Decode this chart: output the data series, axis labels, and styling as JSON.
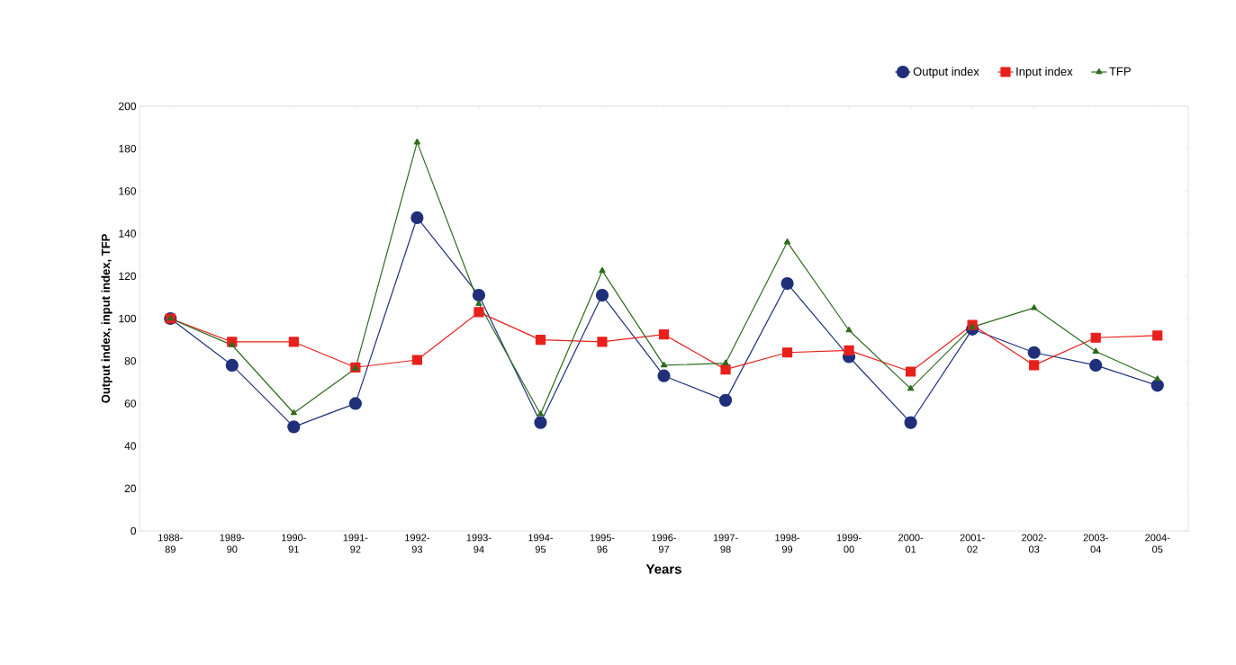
{
  "chart_data": {
    "type": "line",
    "xlabel": "Years",
    "ylabel": "Output index, input index, TFP",
    "categories": [
      "1988-\n89",
      "1989-\n90",
      "1990-\n91",
      "1991-\n92",
      "1992-\n93",
      "1993-\n94",
      "1994-\n95",
      "1995-\n96",
      "1996-\n97",
      "1997-\n98",
      "1998-\n99",
      "1999-\n00",
      "2000-\n01",
      "2001-\n02",
      "2002-\n03",
      "2003-\n04",
      "2004-\n05"
    ],
    "series": [
      {
        "name": "Output index",
        "color": "#1f2f7a",
        "marker": "circle",
        "values": [
          100,
          78,
          49,
          60,
          147.5,
          111,
          51,
          111,
          73,
          61.5,
          116.5,
          82,
          51,
          95,
          84,
          78,
          68.5
        ]
      },
      {
        "name": "Input index",
        "color": "#e8201c",
        "marker": "square",
        "values": [
          100,
          89,
          89,
          77,
          80.5,
          103,
          90,
          89,
          92.5,
          76,
          84,
          85,
          75,
          97,
          78,
          91,
          92
        ]
      },
      {
        "name": "TFP",
        "color": "#2e6b1e",
        "marker": "triangle",
        "values": [
          100,
          87.5,
          55.5,
          76.5,
          183,
          107,
          55,
          122.5,
          78,
          79,
          136,
          94.5,
          67,
          96,
          105,
          84.5,
          71.5
        ]
      }
    ],
    "ylim": [
      0,
      200
    ],
    "yticks": [
      0,
      20,
      40,
      60,
      80,
      100,
      120,
      140,
      160,
      180,
      200
    ],
    "grid": false,
    "legend": "top right",
    "line_style": "solid"
  }
}
